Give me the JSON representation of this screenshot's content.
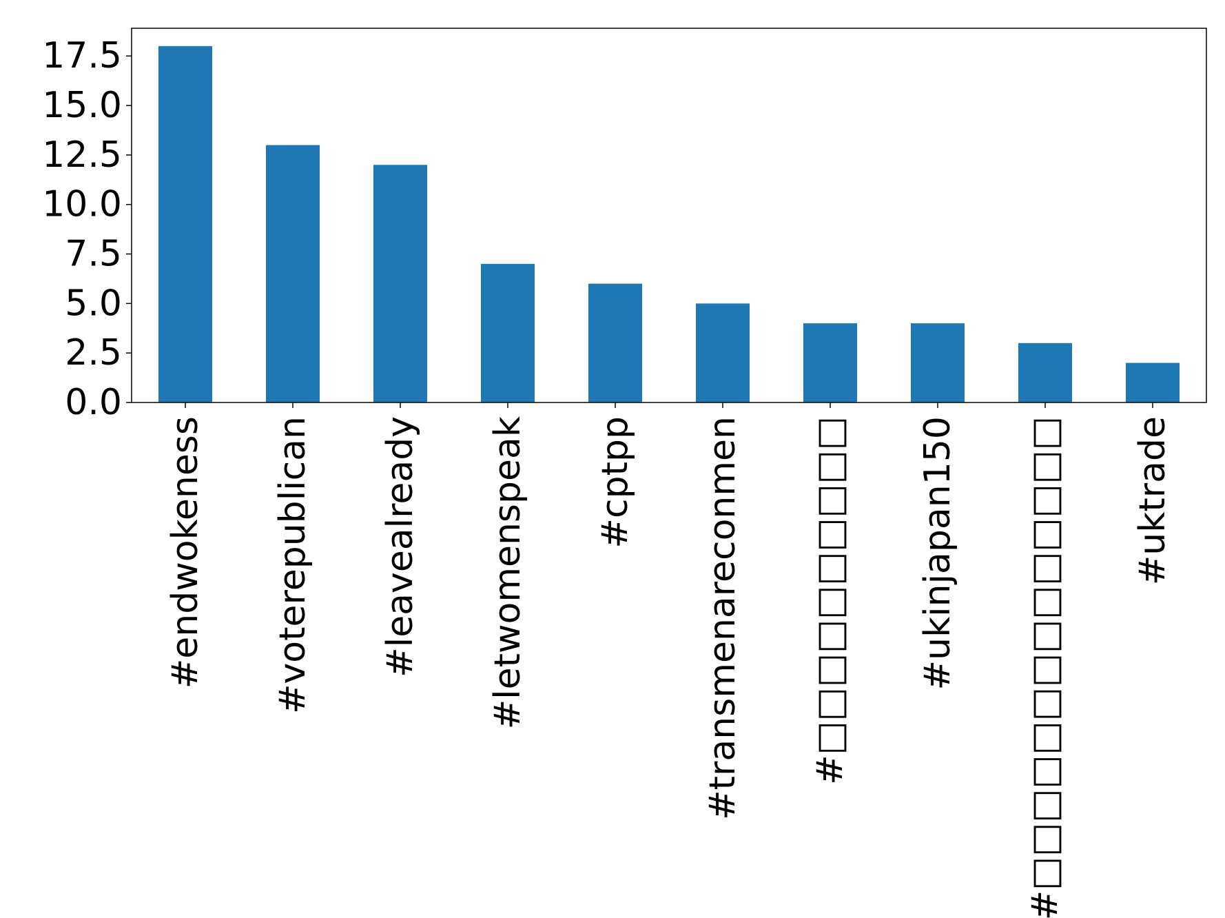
{
  "chart_data": {
    "type": "bar",
    "title": "",
    "xlabel": "",
    "ylabel": "",
    "categories": [
      "#endwokeness",
      "#voterepublican",
      "#leavealready",
      "#letwomenspeak",
      "#cptpp",
      "#transmenareconmen",
      "#□□□□□□□□□□",
      "#ukinjapan150",
      "#□□□□□□□□□□□□□□",
      "#uktrade"
    ],
    "values": [
      18,
      13,
      12,
      7,
      6,
      5,
      4,
      4,
      3,
      2
    ],
    "ylim": [
      0,
      18.9
    ],
    "yticks": [
      0.0,
      2.5,
      5.0,
      7.5,
      10.0,
      12.5,
      15.0,
      17.5
    ],
    "ytick_labels": [
      "0.0",
      "2.5",
      "5.0",
      "7.5",
      "10.0",
      "12.5",
      "15.0",
      "17.5"
    ],
    "bar_color": "#1f77b4",
    "grid": false,
    "legend": "none"
  }
}
